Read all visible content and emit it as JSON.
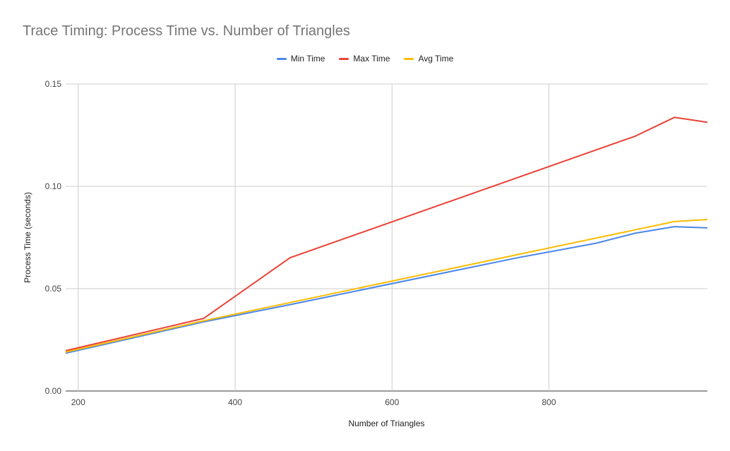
{
  "chart_data": {
    "type": "line",
    "title": "Trace Timing: Process Time vs. Number of Triangles",
    "xlabel": "Number of Triangles",
    "ylabel": "Process Time (seconds)",
    "xlim": [
      184,
      1002
    ],
    "ylim": [
      0,
      0.15
    ],
    "x_ticks": [
      200,
      400,
      600,
      800
    ],
    "x_tick_labels": [
      "200",
      "400",
      "600",
      "800"
    ],
    "y_ticks": [
      0,
      0.05,
      0.1,
      0.15
    ],
    "y_tick_labels": [
      "0.00",
      "0.05",
      "0.10",
      "0.15"
    ],
    "grid": true,
    "legend_position": "top-center",
    "series": [
      {
        "name": "Min Time",
        "color": "#4a86e8",
        "points": [
          [
            184,
            0.0185
          ],
          [
            360,
            0.0338
          ],
          [
            470,
            0.0422
          ],
          [
            680,
            0.0588
          ],
          [
            760,
            0.0651
          ],
          [
            860,
            0.0722
          ],
          [
            910,
            0.0771
          ],
          [
            960,
            0.0803
          ],
          [
            1002,
            0.0797
          ]
        ]
      },
      {
        "name": "Max Time",
        "color": "#e94235",
        "points": [
          [
            184,
            0.0197
          ],
          [
            360,
            0.0355
          ],
          [
            470,
            0.0651
          ],
          [
            910,
            0.1245
          ],
          [
            960,
            0.1337
          ],
          [
            1002,
            0.1313
          ]
        ]
      },
      {
        "name": "Avg Time",
        "color": "#fbbc04",
        "points": [
          [
            184,
            0.019
          ],
          [
            360,
            0.0343
          ],
          [
            470,
            0.0432
          ],
          [
            960,
            0.0828
          ],
          [
            1002,
            0.0838
          ]
        ]
      }
    ]
  }
}
